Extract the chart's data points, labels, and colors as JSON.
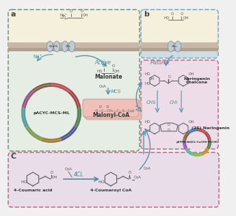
{
  "bg_color": "#f0f0f0",
  "panel_a_bg": "#e5ede5",
  "panel_a_top_bg": "#f5f0dc",
  "panel_b_bg": "#cddde8",
  "panel_naringenin_bg": "#eddde8",
  "panel_c_bg": "#e8dde8",
  "membrane_top": "#c8b8a8",
  "membrane_bot": "#b0a090",
  "arrow_color": "#5590a8",
  "text_blue": "#4a8aa0",
  "border_a": "#7a9a7a",
  "border_b": "#8aaab8",
  "border_c": "#c07090",
  "border_nar": "#c07090",
  "malonyl_bg": "#f0c0b8",
  "malonyl_bg2": "#f8d0c8",
  "labels": {
    "a": "a",
    "b": "b",
    "c": "C",
    "malonate": "Malonate",
    "mcs": "MCS",
    "malonyl_coa": "Malonyl-CoA",
    "pacyc": "pACYC-MCS-ML",
    "active": "Active",
    "passive": "Passive",
    "naringenin_chalcone": "Naringenin\nChalcone",
    "naringenin_2s": "(2S) Naringenin",
    "chs": "CHS",
    "chi": "CHI",
    "coumaric": "4-Coumaric acid",
    "coumaroyl": "4-Coumaroyl CoA",
    "cl4": "4CL",
    "petm6": "pETM6-At4CL-CnCHS-MvCHI"
  },
  "plasmid1_colors": [
    "#c05050",
    "#b04040",
    "#508050",
    "#5050a0",
    "#a08030",
    "#80a050",
    "#50a0a0",
    "#a05080",
    "#806040"
  ],
  "plasmid2_colors": [
    "#c05050",
    "#b04040",
    "#508050",
    "#d09020",
    "#80c050",
    "#50c0a0",
    "#a050c0",
    "#806040",
    "#4080c0"
  ]
}
